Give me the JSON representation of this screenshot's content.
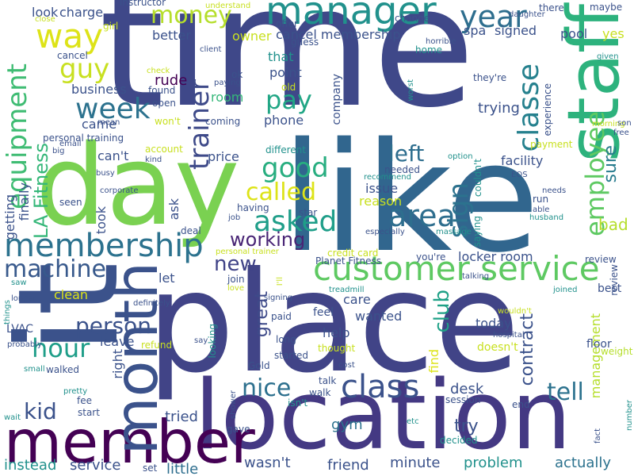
{
  "words": [
    {
      "text": "time",
      "color": "#3f4889"
    },
    {
      "text": "like",
      "color": "#31668e"
    },
    {
      "text": "place",
      "color": "#414487"
    },
    {
      "text": "day",
      "color": "#7ad151"
    },
    {
      "text": "it",
      "color": "#3b528b"
    },
    {
      "text": "location",
      "color": "#443983"
    },
    {
      "text": "member",
      "color": "#440154"
    },
    {
      "text": "staff",
      "color": "#2db27d"
    },
    {
      "text": "month",
      "color": "#3b528b"
    },
    {
      "text": "manager",
      "color": "#21918c"
    },
    {
      "text": "customer service",
      "color": "#5ec962"
    },
    {
      "text": "membership",
      "color": "#2c728e"
    },
    {
      "text": "class",
      "color": "#3b528b"
    },
    {
      "text": "way",
      "color": "#dde318"
    },
    {
      "text": "equipment",
      "color": "#3fbc73"
    },
    {
      "text": "money",
      "color": "#b5de2b"
    },
    {
      "text": "year",
      "color": "#2e6e8e"
    },
    {
      "text": "guy",
      "color": "#c8e020"
    },
    {
      "text": "week",
      "color": "#2c728e"
    },
    {
      "text": "trainer",
      "color": "#3e4a89"
    },
    {
      "text": "employee",
      "color": "#5ec962"
    },
    {
      "text": "classe",
      "color": "#26818e"
    },
    {
      "text": "pay",
      "color": "#21a685"
    },
    {
      "text": "good",
      "color": "#28ae80"
    },
    {
      "text": "called",
      "color": "#dde318"
    },
    {
      "text": "asked",
      "color": "#1f9e89"
    },
    {
      "text": "area",
      "color": "#2e6e8e"
    },
    {
      "text": "left",
      "color": "#2e6e8e"
    },
    {
      "text": "sign",
      "color": "#2c728e"
    },
    {
      "text": "LA Fitness",
      "color": "#35b779"
    },
    {
      "text": "machine",
      "color": "#38598c"
    },
    {
      "text": "hour",
      "color": "#1f9e89"
    },
    {
      "text": "person",
      "color": "#3b528b"
    },
    {
      "text": "kid",
      "color": "#3b528b"
    },
    {
      "text": "nice",
      "color": "#2d708e"
    },
    {
      "text": "tell",
      "color": "#2c728e"
    },
    {
      "text": "new",
      "color": "#404387"
    },
    {
      "text": "working",
      "color": "#482475"
    },
    {
      "text": "great",
      "color": "#3e4a89"
    },
    {
      "text": "club",
      "color": "#1fa187"
    },
    {
      "text": "contract",
      "color": "#3b528b"
    },
    {
      "text": "sure",
      "color": "#287c8e"
    },
    {
      "text": "bad",
      "color": "#b5de2b"
    },
    {
      "text": "management",
      "color": "#b5de2b"
    },
    {
      "text": "instead",
      "color": "#21918c"
    },
    {
      "text": "service",
      "color": "#3b528b"
    },
    {
      "text": "little",
      "color": "#2e6e8e"
    },
    {
      "text": "wasn't",
      "color": "#3b528b"
    },
    {
      "text": "friend",
      "color": "#3b528b"
    },
    {
      "text": "minute",
      "color": "#3b528b"
    },
    {
      "text": "problem",
      "color": "#21918c"
    },
    {
      "text": "actually",
      "color": "#2c728e"
    },
    {
      "text": "try",
      "color": "#3b528b"
    },
    {
      "text": "desk",
      "color": "#3b528b"
    },
    {
      "text": "gym",
      "color": "#2c728e"
    },
    {
      "text": "tried",
      "color": "#3b528b"
    },
    {
      "text": "cancel membership",
      "color": "#3b528b"
    },
    {
      "text": "owner",
      "color": "#c8e020"
    },
    {
      "text": "better",
      "color": "#3b528b"
    },
    {
      "text": "business",
      "color": "#3b528b"
    },
    {
      "text": "came",
      "color": "#3b528b"
    },
    {
      "text": "can't",
      "color": "#3b528b"
    },
    {
      "text": "rude",
      "color": "#440154"
    },
    {
      "text": "room",
      "color": "#35b779"
    },
    {
      "text": "that",
      "color": "#21918c"
    },
    {
      "text": "point",
      "color": "#3b528b"
    },
    {
      "text": "phone",
      "color": "#3b528b"
    },
    {
      "text": "trying",
      "color": "#3b528b"
    },
    {
      "text": "facility",
      "color": "#3b528b"
    },
    {
      "text": "issue",
      "color": "#3b528b"
    },
    {
      "text": "reason",
      "color": "#c8e020"
    },
    {
      "text": "locker room",
      "color": "#3b528b"
    },
    {
      "text": "charge",
      "color": "#3b528b"
    },
    {
      "text": "look",
      "color": "#3b528b"
    },
    {
      "text": "spa",
      "color": "#3b528b"
    },
    {
      "text": "signed",
      "color": "#3b528b"
    },
    {
      "text": "pool",
      "color": "#3b528b"
    },
    {
      "text": "yes",
      "color": "#c8e020"
    },
    {
      "text": "price",
      "color": "#3b528b"
    },
    {
      "text": "took",
      "color": "#3b528b"
    },
    {
      "text": "getting",
      "color": "#3b528b"
    },
    {
      "text": "finally",
      "color": "#3b528b"
    },
    {
      "text": "ask",
      "color": "#3b528b"
    },
    {
      "text": "let",
      "color": "#3b528b"
    },
    {
      "text": "clean",
      "color": "#dde318"
    },
    {
      "text": "care",
      "color": "#3b528b"
    },
    {
      "text": "wanted",
      "color": "#3b528b"
    },
    {
      "text": "today",
      "color": "#3b528b"
    },
    {
      "text": "help",
      "color": "#3b528b"
    },
    {
      "text": "leave",
      "color": "#3b528b"
    },
    {
      "text": "right",
      "color": "#3b528b"
    },
    {
      "text": "find",
      "color": "#dde318"
    },
    {
      "text": "experience",
      "color": "#3b528b"
    },
    {
      "text": "company",
      "color": "#3b528b"
    },
    {
      "text": "they're",
      "color": "#3b528b"
    },
    {
      "text": "run",
      "color": "#3b528b"
    },
    {
      "text": "floor",
      "color": "#3b528b"
    },
    {
      "text": "weight",
      "color": "#b5de2b"
    },
    {
      "text": "doesn't",
      "color": "#c8e020"
    },
    {
      "text": "feel",
      "color": "#3b528b"
    },
    {
      "text": "long",
      "color": "#3b528b"
    },
    {
      "text": "started",
      "color": "#3b528b"
    },
    {
      "text": "talk",
      "color": "#3b528b"
    },
    {
      "text": "walk",
      "color": "#3b528b"
    },
    {
      "text": "LVAC",
      "color": "#3b528b"
    },
    {
      "text": "walked",
      "color": "#3b528b"
    },
    {
      "text": "refund",
      "color": "#c8e020"
    },
    {
      "text": "paid",
      "color": "#3b528b"
    },
    {
      "text": "thought",
      "color": "#c8e020"
    },
    {
      "text": "Gold",
      "color": "#3b528b"
    },
    {
      "text": "start",
      "color": "#3b528b"
    },
    {
      "text": "fee",
      "color": "#3b528b"
    },
    {
      "text": "gave",
      "color": "#3b528b"
    },
    {
      "text": "decided",
      "color": "#21918c"
    },
    {
      "text": "set",
      "color": "#3b528b"
    },
    {
      "text": "end",
      "color": "#3b528b"
    },
    {
      "text": "session",
      "color": "#3b528b"
    },
    {
      "text": "personal training",
      "color": "#3b528b"
    },
    {
      "text": "mean",
      "color": "#3b528b"
    },
    {
      "text": "won't",
      "color": "#c8e020"
    },
    {
      "text": "coming",
      "color": "#3b528b"
    },
    {
      "text": "open",
      "color": "#3b528b"
    },
    {
      "text": "found",
      "color": "#3b528b"
    },
    {
      "text": "check",
      "color": "#c8e020"
    },
    {
      "text": "account",
      "color": "#c8e020"
    },
    {
      "text": "kind",
      "color": "#3b528b"
    },
    {
      "text": "different",
      "color": "#21918c"
    },
    {
      "text": "needed",
      "color": "#3b528b"
    },
    {
      "text": "recommend",
      "color": "#21918c"
    },
    {
      "text": "option",
      "color": "#21918c"
    },
    {
      "text": "couldn't",
      "color": "#21918c"
    },
    {
      "text": "EOS",
      "color": "#3b528b"
    },
    {
      "text": "needs",
      "color": "#3b528b"
    },
    {
      "text": "able",
      "color": "#3b528b"
    },
    {
      "text": "husband",
      "color": "#21918c"
    },
    {
      "text": "payment",
      "color": "#c8e020"
    },
    {
      "text": "given",
      "color": "#21918c"
    },
    {
      "text": "maybe",
      "color": "#3b528b"
    },
    {
      "text": "there",
      "color": "#3b528b"
    },
    {
      "text": "daughter",
      "color": "#3b528b"
    },
    {
      "text": "change",
      "color": "#3b528b"
    },
    {
      "text": "instructor",
      "color": "#3b528b"
    },
    {
      "text": "understand",
      "color": "#c8e020"
    },
    {
      "text": "offer",
      "color": "#3b528b"
    },
    {
      "text": "guess",
      "color": "#3b528b"
    },
    {
      "text": "horrible",
      "color": "#3b528b"
    },
    {
      "text": "home",
      "color": "#21918c"
    },
    {
      "text": "old",
      "color": "#c8e020"
    },
    {
      "text": "ok",
      "color": "#3b528b"
    },
    {
      "text": "paying",
      "color": "#3b528b"
    },
    {
      "text": "client",
      "color": "#3b528b"
    },
    {
      "text": "worst",
      "color": "#21918c"
    },
    {
      "text": "girl",
      "color": "#c8e020"
    },
    {
      "text": "cancel",
      "color": "#3b528b"
    },
    {
      "text": "close",
      "color": "#c8e020"
    },
    {
      "text": "email",
      "color": "#3b528b"
    },
    {
      "text": "big",
      "color": "#3b528b"
    },
    {
      "text": "busy",
      "color": "#3b528b"
    },
    {
      "text": "corporate",
      "color": "#3b528b"
    },
    {
      "text": "seen",
      "color": "#3b528b"
    },
    {
      "text": "job",
      "color": "#3b528b"
    },
    {
      "text": "deal",
      "color": "#3b528b"
    },
    {
      "text": "having",
      "color": "#3b528b"
    },
    {
      "text": "star",
      "color": "#3b528b"
    },
    {
      "text": "especially",
      "color": "#3b528b"
    },
    {
      "text": "massage",
      "color": "#21918c"
    },
    {
      "text": "saying",
      "color": "#21918c"
    },
    {
      "text": "personal trainer",
      "color": "#c8e020"
    },
    {
      "text": "credit card",
      "color": "#c8e020"
    },
    {
      "text": "Planet Fitness",
      "color": "#3b528b"
    },
    {
      "text": "you're",
      "color": "#3b528b"
    },
    {
      "text": "review",
      "color": "#3b528b"
    },
    {
      "text": "review_",
      "color": "#3b528b"
    },
    {
      "text": "talking",
      "color": "#3b528b"
    },
    {
      "text": "joined",
      "color": "#21918c"
    },
    {
      "text": "best",
      "color": "#3b528b"
    },
    {
      "text": "wouldn't",
      "color": "#c8e020"
    },
    {
      "text": "hospital",
      "color": "#3b528b"
    },
    {
      "text": "morning",
      "color": "#c8e020"
    },
    {
      "text": "son",
      "color": "#3b528b"
    },
    {
      "text": "free",
      "color": "#3b528b"
    },
    {
      "text": "join",
      "color": "#3b528b"
    },
    {
      "text": "love",
      "color": "#c8e020"
    },
    {
      "text": "I'll",
      "color": "#c8e020"
    },
    {
      "text": "signing",
      "color": "#3b528b"
    },
    {
      "text": "treadmill",
      "color": "#21918c"
    },
    {
      "text": "saw",
      "color": "#21918c"
    },
    {
      "text": "longer",
      "color": "#3b528b"
    },
    {
      "text": "things",
      "color": "#21918c"
    },
    {
      "text": "definitely",
      "color": "#3b528b"
    },
    {
      "text": "probably",
      "color": "#3b528b"
    },
    {
      "text": "small",
      "color": "#21918c"
    },
    {
      "text": "say",
      "color": "#3b528b"
    },
    {
      "text": "looking",
      "color": "#21918c"
    },
    {
      "text": "cost",
      "color": "#3b528b"
    },
    {
      "text": "isn't",
      "color": "#21918c"
    },
    {
      "text": "shower",
      "color": "#3b528b"
    },
    {
      "text": "pretty",
      "color": "#21918c"
    },
    {
      "text": "wait",
      "color": "#21918c"
    },
    {
      "text": "etc",
      "color": "#21918c"
    },
    {
      "text": "number",
      "color": "#21918c"
    },
    {
      "text": "fact",
      "color": "#3b528b"
    }
  ]
}
